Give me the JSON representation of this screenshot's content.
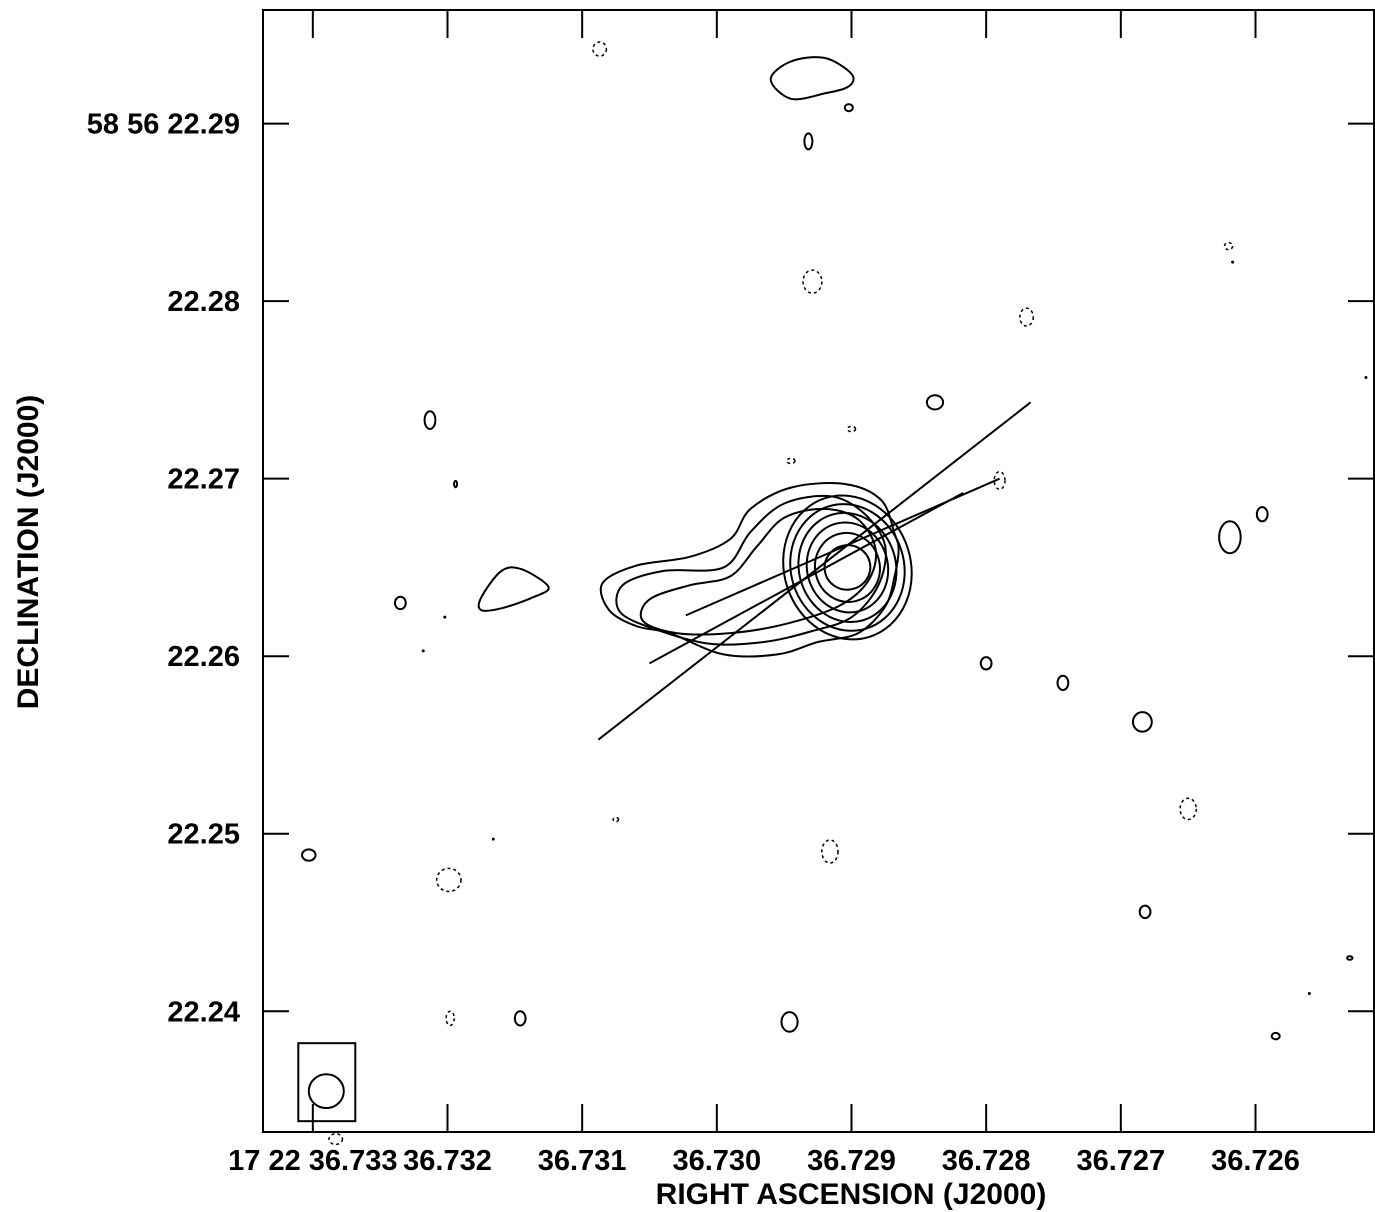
{
  "chart_data": {
    "type": "contour",
    "xlabel": "RIGHT ASCENSION (J2000)",
    "ylabel": "DECLINATION (J2000)",
    "x_ticks": [
      {
        "value": 36.733,
        "label": "17 22 36.733"
      },
      {
        "value": 36.732,
        "label": "36.732"
      },
      {
        "value": 36.731,
        "label": "36.731"
      },
      {
        "value": 36.73,
        "label": "36.730"
      },
      {
        "value": 36.729,
        "label": "36.729"
      },
      {
        "value": 36.728,
        "label": "36.728"
      },
      {
        "value": 36.727,
        "label": "36.727"
      },
      {
        "value": 36.726,
        "label": "36.726"
      }
    ],
    "y_ticks": [
      {
        "value": 22.29,
        "label": "58 56 22.29"
      },
      {
        "value": 22.28,
        "label": "22.28"
      },
      {
        "value": 22.27,
        "label": "22.27"
      },
      {
        "value": 22.26,
        "label": "22.26"
      },
      {
        "value": 22.25,
        "label": "22.25"
      },
      {
        "value": 22.24,
        "label": "22.24"
      }
    ],
    "xlim": [
      36.73337,
      36.72512
    ],
    "ylim": [
      22.2332,
      22.2964
    ],
    "core": {
      "ra": 36.72903,
      "dec": 22.265
    },
    "core_contours": [
      {
        "rx": 0.00017,
        "ry": 0.00125,
        "angle": -12
      },
      {
        "rx": 0.00024,
        "ry": 0.00195,
        "angle": -14
      },
      {
        "rx": 0.0003,
        "ry": 0.00255,
        "angle": -15
      },
      {
        "rx": 0.00036,
        "ry": 0.0031,
        "angle": -16
      },
      {
        "rx": 0.00042,
        "ry": 0.0036,
        "angle": -17
      },
      {
        "rx": 0.00047,
        "ry": 0.0041,
        "angle": -18
      }
    ],
    "extended_contours": [
      [
        [
          36.72868,
          22.2669
        ],
        [
          36.72878,
          22.2688
        ],
        [
          36.72905,
          22.2697
        ],
        [
          36.72945,
          22.2695
        ],
        [
          36.72975,
          22.2683
        ],
        [
          36.7299,
          22.2666
        ],
        [
          36.7302,
          22.2656
        ],
        [
          36.7306,
          22.2651
        ],
        [
          36.73085,
          22.2641
        ],
        [
          36.7308,
          22.2626
        ],
        [
          36.7306,
          22.2617
        ],
        [
          36.73035,
          22.2613
        ],
        [
          36.72995,
          22.2601
        ],
        [
          36.72955,
          22.2601
        ],
        [
          36.72925,
          22.2608
        ],
        [
          36.72895,
          22.2613
        ],
        [
          36.72875,
          22.2628
        ],
        [
          36.72868,
          22.2645
        ],
        [
          36.72865,
          22.266
        ]
      ],
      [
        [
          36.72875,
          22.2662
        ],
        [
          36.7289,
          22.268
        ],
        [
          36.72915,
          22.269
        ],
        [
          36.7295,
          22.2686
        ],
        [
          36.72975,
          22.267
        ],
        [
          36.72995,
          22.265
        ],
        [
          36.7304,
          22.2648
        ],
        [
          36.7307,
          22.264
        ],
        [
          36.73072,
          22.2625
        ],
        [
          36.73045,
          22.2615
        ],
        [
          36.73005,
          22.2607
        ],
        [
          36.72965,
          22.2608
        ],
        [
          36.7293,
          22.2614
        ],
        [
          36.729,
          22.2622
        ],
        [
          36.7288,
          22.264
        ]
      ],
      [
        [
          36.72882,
          22.266
        ],
        [
          36.72895,
          22.2677
        ],
        [
          36.7292,
          22.2683
        ],
        [
          36.7295,
          22.2678
        ],
        [
          36.7297,
          22.2662
        ],
        [
          36.7299,
          22.2645
        ],
        [
          36.7302,
          22.264
        ],
        [
          36.7305,
          22.2632
        ],
        [
          36.73055,
          22.262
        ],
        [
          36.7303,
          22.2613
        ],
        [
          36.7299,
          22.2613
        ],
        [
          36.7295,
          22.2618
        ],
        [
          36.7291,
          22.2628
        ],
        [
          36.72888,
          22.2642
        ]
      ]
    ],
    "blob_contours": [
      [
        [
          36.73175,
          22.2633
        ],
        [
          36.7316,
          22.2648
        ],
        [
          36.73145,
          22.2649
        ],
        [
          36.73125,
          22.2639
        ],
        [
          36.73137,
          22.2633
        ],
        [
          36.7316,
          22.2627
        ],
        [
          36.73175,
          22.2626
        ]
      ],
      [
        [
          36.729,
          22.2928
        ],
        [
          36.7292,
          22.2937
        ],
        [
          36.72945,
          22.2935
        ],
        [
          36.7296,
          22.2925
        ],
        [
          36.72945,
          22.2914
        ],
        [
          36.7292,
          22.2917
        ],
        [
          36.72902,
          22.2921
        ]
      ]
    ],
    "pos_islands": [
      {
        "ra": 36.73303,
        "dec": 22.2488,
        "rx": 5e-05,
        "ry": 0.00032
      },
      {
        "ra": 36.73235,
        "dec": 22.263,
        "rx": 4e-05,
        "ry": 0.00035
      },
      {
        "ra": 36.73213,
        "dec": 22.2733,
        "rx": 4e-05,
        "ry": 0.0005
      },
      {
        "ra": 36.73194,
        "dec": 22.2697,
        "rx": 1e-05,
        "ry": 0.00018
      },
      {
        "ra": 36.73146,
        "dec": 22.2396,
        "rx": 4e-05,
        "ry": 0.0004
      },
      {
        "ra": 36.72932,
        "dec": 22.289,
        "rx": 3e-05,
        "ry": 0.00045
      },
      {
        "ra": 36.72902,
        "dec": 22.2909,
        "rx": 3e-05,
        "ry": 0.0002
      },
      {
        "ra": 36.72946,
        "dec": 22.2394,
        "rx": 6e-05,
        "ry": 0.00055
      },
      {
        "ra": 36.72838,
        "dec": 22.2743,
        "rx": 6e-05,
        "ry": 0.0004
      },
      {
        "ra": 36.728,
        "dec": 22.2596,
        "rx": 4e-05,
        "ry": 0.00035
      },
      {
        "ra": 36.72743,
        "dec": 22.2585,
        "rx": 4e-05,
        "ry": 0.0004
      },
      {
        "ra": 36.72684,
        "dec": 22.2563,
        "rx": 7e-05,
        "ry": 0.00055
      },
      {
        "ra": 36.72682,
        "dec": 22.2456,
        "rx": 4e-05,
        "ry": 0.00035
      },
      {
        "ra": 36.72619,
        "dec": 22.2667,
        "rx": 8e-05,
        "ry": 0.0009
      },
      {
        "ra": 36.72595,
        "dec": 22.268,
        "rx": 4e-05,
        "ry": 0.0004
      },
      {
        "ra": 36.72585,
        "dec": 22.2386,
        "rx": 3e-05,
        "ry": 0.00018
      },
      {
        "ra": 36.7253,
        "dec": 22.243,
        "rx": 2e-05,
        "ry": 0.0001
      }
    ],
    "neg_islands": [
      {
        "ra": 36.73087,
        "dec": 22.2942,
        "rx": 5e-05,
        "ry": 0.0004
      },
      {
        "ra": 36.73199,
        "dec": 22.2474,
        "rx": 9e-05,
        "ry": 0.00065
      },
      {
        "ra": 36.73198,
        "dec": 22.2396,
        "rx": 3e-05,
        "ry": 0.0004
      },
      {
        "ra": 36.72929,
        "dec": 22.2811,
        "rx": 7e-05,
        "ry": 0.00065
      },
      {
        "ra": 36.72916,
        "dec": 22.249,
        "rx": 6e-05,
        "ry": 0.00065
      },
      {
        "ra": 36.72945,
        "dec": 22.271,
        "rx": 3e-05,
        "ry": 0.00015
      },
      {
        "ra": 36.729,
        "dec": 22.2728,
        "rx": 3e-05,
        "ry": 0.00015
      },
      {
        "ra": 36.7277,
        "dec": 22.2791,
        "rx": 5e-05,
        "ry": 0.0005
      },
      {
        "ra": 36.7279,
        "dec": 22.2699,
        "rx": 4e-05,
        "ry": 0.0005
      },
      {
        "ra": 36.7265,
        "dec": 22.2514,
        "rx": 6e-05,
        "ry": 0.0006
      },
      {
        "ra": 36.7262,
        "dec": 22.2831,
        "rx": 3e-05,
        "ry": 0.0002
      },
      {
        "ra": 36.73075,
        "dec": 22.2508,
        "rx": 2e-05,
        "ry": 0.00012
      },
      {
        "ra": 36.73283,
        "dec": 22.2328,
        "rx": 5e-05,
        "ry": 0.0003
      }
    ],
    "dot_marks": [
      {
        "ra": 36.73218,
        "dec": 22.2603
      },
      {
        "ra": 36.73202,
        "dec": 22.2622
      },
      {
        "ra": 36.73166,
        "dec": 22.2497
      },
      {
        "ra": 36.72617,
        "dec": 22.2822
      },
      {
        "ra": 36.7256,
        "dec": 22.241
      },
      {
        "ra": 36.72518,
        "dec": 22.2757
      }
    ],
    "direction_lines": [
      {
        "from": {
          "ra": 36.73088,
          "dec": 22.2553
        },
        "to": {
          "ra": 36.72767,
          "dec": 22.2743
        }
      },
      {
        "from": {
          "ra": 36.7305,
          "dec": 22.2596
        },
        "to": {
          "ra": 36.72817,
          "dec": 22.2692
        }
      },
      {
        "from": {
          "ra": 36.73023,
          "dec": 22.2623
        },
        "to": {
          "ra": 36.7279,
          "dec": 22.27
        }
      }
    ],
    "beam": {
      "ra": 36.7329,
      "dec": 22.2355,
      "major": 0.0019,
      "minor": 0.00013
    }
  }
}
